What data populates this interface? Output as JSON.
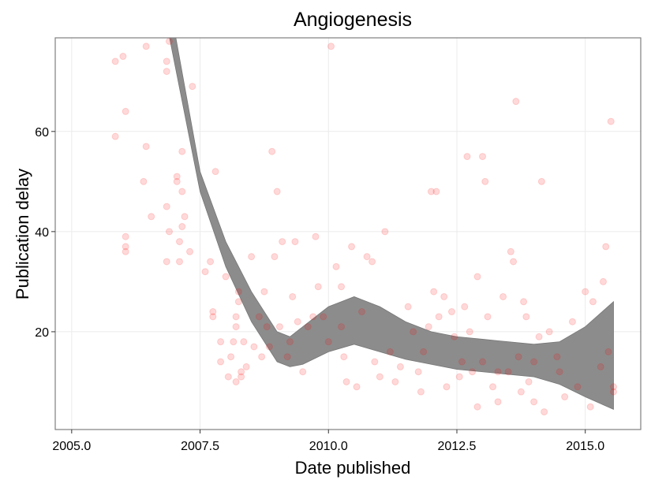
{
  "chart_data": {
    "type": "scatter",
    "title": "Angiogenesis",
    "x_label": "Date published",
    "y_label": "Publication delay",
    "xlim": [
      2004.68,
      2016.08
    ],
    "ylim": [
      0.47,
      78.7
    ],
    "xticks": [
      {
        "value": 2005,
        "label": "2005.0"
      },
      {
        "value": 2007.5,
        "label": "2007.5"
      },
      {
        "value": 2010,
        "label": "2010.0"
      },
      {
        "value": 2012.5,
        "label": "2012.5"
      },
      {
        "value": 2015,
        "label": "2015.0"
      }
    ],
    "yticks": [
      20,
      40,
      60
    ],
    "grid": true,
    "color": "#ff0000",
    "point_opacity": 0.15,
    "x": [
      2005.85,
      2005.85,
      2006.0,
      2006.05,
      2006.05,
      2006.05,
      2006.05,
      2006.45,
      2006.4,
      2006.45,
      2006.55,
      2006.85,
      2006.85,
      2006.85,
      2006.9,
      2006.85,
      2006.9,
      2007.05,
      2007.05,
      2007.1,
      2007.15,
      2007.15,
      2007.2,
      2007.15,
      2007.1,
      2007.3,
      2007.35,
      2007.6,
      2007.7,
      2007.75,
      2007.75,
      2007.8,
      2007.9,
      2007.9,
      2008.0,
      2008.05,
      2008.1,
      2008.15,
      2008.2,
      2008.2,
      2008.25,
      2008.25,
      2008.2,
      2008.3,
      2008.3,
      2008.35,
      2008.4,
      2008.5,
      2008.55,
      2008.65,
      2008.7,
      2008.75,
      2008.8,
      2008.85,
      2008.9,
      2008.95,
      2009.0,
      2009.05,
      2009.1,
      2009.2,
      2009.25,
      2009.3,
      2009.35,
      2009.4,
      2009.5,
      2009.6,
      2009.7,
      2009.75,
      2009.8,
      2009.9,
      2010.0,
      2010.05,
      2010.15,
      2010.25,
      2010.25,
      2010.3,
      2010.35,
      2010.45,
      2010.55,
      2010.65,
      2010.75,
      2010.85,
      2010.9,
      2011.0,
      2011.1,
      2011.2,
      2011.3,
      2011.4,
      2011.55,
      2011.65,
      2011.75,
      2011.8,
      2011.95,
      2012.0,
      2012.1,
      2012.05,
      2012.15,
      2012.25,
      2012.3,
      2012.4,
      2012.45,
      2012.6,
      2012.65,
      2012.7,
      2012.8,
      2012.9,
      2012.9,
      2013.0,
      2013.05,
      2013.1,
      2013.2,
      2013.3,
      2013.4,
      2013.5,
      2013.55,
      2013.6,
      2013.65,
      2013.7,
      2013.75,
      2013.8,
      2013.85,
      2013.9,
      2014.0,
      2014.1,
      2014.15,
      2014.2,
      2014.3,
      2014.45,
      2014.5,
      2014.6,
      2014.75,
      2014.85,
      2015.0,
      2015.1,
      2015.15,
      2015.3,
      2015.35,
      2015.4,
      2015.5,
      2015.55,
      2015.45,
      2013.3,
      2013.0,
      2012.75,
      2011.85,
      2012.55,
      2014.0,
      2015.55
    ],
    "y": [
      74,
      59,
      75,
      64,
      39,
      37,
      36,
      77,
      50,
      57,
      43,
      72,
      74,
      45,
      40,
      34,
      78,
      51,
      50,
      38,
      48,
      56,
      43,
      41,
      34,
      36,
      69,
      32,
      34,
      24,
      23,
      52,
      18,
      14,
      31,
      11,
      15,
      18,
      23,
      21,
      28,
      26,
      10,
      12,
      11,
      18,
      13,
      35,
      17,
      23,
      15,
      28,
      21,
      17,
      56,
      35,
      48,
      21,
      38,
      15,
      18,
      27,
      38,
      22,
      12,
      21,
      23,
      39,
      29,
      23,
      18,
      77,
      33,
      29,
      21,
      15,
      10,
      37,
      9,
      24,
      35,
      34,
      14,
      11,
      40,
      16,
      10,
      13,
      25,
      20,
      12,
      8,
      21,
      48,
      48,
      28,
      23,
      27,
      9,
      24,
      19,
      14,
      25,
      55,
      12,
      31,
      5,
      55,
      50,
      23,
      9,
      6,
      27,
      12,
      36,
      34,
      66,
      15,
      8,
      26,
      23,
      10,
      6,
      19,
      50,
      4,
      20,
      15,
      12,
      7,
      22,
      9,
      28,
      5,
      26,
      13,
      30,
      37,
      62,
      9,
      16,
      12,
      14,
      20,
      16,
      11,
      14,
      8
    ],
    "ribbon": {
      "color": "#8c8c8c",
      "x": [
        2006.9,
        2007.5,
        2008.0,
        2008.5,
        2009.0,
        2009.25,
        2009.5,
        2010.0,
        2010.5,
        2011.0,
        2011.5,
        2012.0,
        2012.5,
        2013.0,
        2013.5,
        2014.0,
        2014.5,
        2015.0,
        2015.55
      ],
      "ymin": [
        79,
        48,
        33,
        22,
        14,
        13,
        13.5,
        16,
        17.5,
        16,
        14.5,
        13.5,
        12.5,
        12,
        11.5,
        11,
        9.5,
        7,
        4.5
      ],
      "ymax": [
        86,
        52,
        38,
        28,
        20,
        19,
        21,
        25,
        27,
        25,
        22,
        20,
        19,
        18.5,
        18,
        17.5,
        18,
        21,
        26
      ]
    }
  }
}
